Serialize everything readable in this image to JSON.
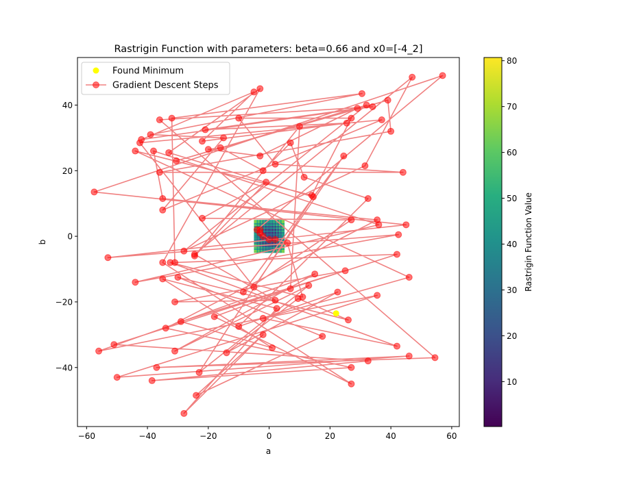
{
  "chart_data": {
    "type": "scatter",
    "title": "Rastrigin Function with parameters: beta=0.66 and x0=[-4_2]",
    "xlabel": "a",
    "ylabel": "b",
    "xlim": [
      -63,
      62.5
    ],
    "ylim": [
      -58,
      54.5
    ],
    "x_ticks": [
      -60,
      -40,
      -20,
      0,
      20,
      40,
      60
    ],
    "y_ticks": [
      -40,
      -20,
      0,
      20,
      40
    ],
    "legend_position": "upper-left",
    "colorbar": {
      "label": "Rastrigin Function Value",
      "colormap": "viridis",
      "range": [
        0.2,
        80.7
      ],
      "ticks": [
        10,
        20,
        30,
        40,
        50,
        60,
        70,
        80
      ]
    },
    "heatmap_region": {
      "x_range": [
        -5,
        5
      ],
      "y_range": [
        -5,
        5
      ]
    },
    "series": [
      {
        "name": "Found Minimum",
        "color": "#ffff00",
        "points": [
          [
            22,
            -23.5
          ]
        ]
      },
      {
        "name": "Gradient Descent Steps",
        "color": "#ff0000",
        "line_color": "#f08080",
        "points": [
          [
            -4,
            2
          ],
          [
            57,
            49
          ],
          [
            -57.5,
            13.5
          ],
          [
            45,
            3.5
          ],
          [
            -53,
            -6.5
          ],
          [
            42.5,
            0.5
          ],
          [
            -44,
            -14
          ],
          [
            36,
            3.5
          ],
          [
            -38,
            26
          ],
          [
            -35,
            11.5
          ],
          [
            35.5,
            5
          ],
          [
            -34,
            -28
          ],
          [
            27,
            -40
          ],
          [
            -38.5,
            -44
          ],
          [
            32.5,
            -38
          ],
          [
            -51,
            -33
          ],
          [
            42,
            -5.5
          ],
          [
            -31,
            -8
          ],
          [
            -32,
            36
          ],
          [
            30.5,
            43.5
          ],
          [
            -39,
            31
          ],
          [
            -15,
            30
          ],
          [
            -35,
            8
          ],
          [
            37,
            35.5
          ],
          [
            -42.5,
            28.5
          ],
          [
            -5,
            -15.5
          ],
          [
            24.5,
            24.5
          ],
          [
            -8.5,
            -17
          ],
          [
            27,
            5
          ],
          [
            -22,
            5.5
          ],
          [
            -1,
            16.5
          ],
          [
            -24.5,
            -6
          ],
          [
            10,
            33.5
          ],
          [
            7,
            -16
          ],
          [
            -18,
            -24.5
          ],
          [
            27,
            -45
          ],
          [
            -35,
            -8
          ],
          [
            -3,
            45
          ],
          [
            -33,
            25.5
          ],
          [
            14.5,
            12
          ],
          [
            -23,
            -41.5
          ],
          [
            13,
            -15
          ],
          [
            -31,
            -35
          ],
          [
            15,
            -11.5
          ],
          [
            -56,
            -35
          ],
          [
            35.5,
            -18
          ],
          [
            -50,
            -43
          ],
          [
            46,
            -36.5
          ],
          [
            -37,
            -40
          ],
          [
            54.5,
            -37
          ],
          [
            -36,
            35.5
          ],
          [
            34,
            39.5
          ],
          [
            -42,
            29.5
          ],
          [
            -5,
            44
          ],
          [
            -22,
            29
          ],
          [
            25.5,
            34.5
          ],
          [
            -21,
            32.5
          ],
          [
            29,
            39
          ],
          [
            -3,
            24.5
          ],
          [
            -20,
            26.5
          ],
          [
            -16,
            27
          ],
          [
            -2,
            20
          ],
          [
            7,
            28.5
          ],
          [
            11.5,
            18
          ],
          [
            32.5,
            11.5
          ],
          [
            -10,
            -27.5
          ],
          [
            22.5,
            -17
          ],
          [
            -14,
            -35.5
          ],
          [
            9.5,
            -19
          ],
          [
            26,
            -25.5
          ],
          [
            -30,
            -12.5
          ],
          [
            17.5,
            -30.5
          ],
          [
            -24,
            -48.5
          ],
          [
            -2,
            -30
          ],
          [
            -28,
            -54
          ],
          [
            2.5,
            -22
          ],
          [
            -35,
            -13
          ],
          [
            1,
            -34
          ],
          [
            -29,
            -26
          ],
          [
            25,
            -10.5
          ],
          [
            -31,
            -20
          ],
          [
            2,
            -19.5
          ],
          [
            -24.5,
            -5.5
          ],
          [
            47,
            48.5
          ],
          [
            31.5,
            21.5
          ],
          [
            -28,
            -4.5
          ],
          [
            32,
            40
          ],
          [
            -30.5,
            23
          ],
          [
            39,
            41.5
          ],
          [
            40,
            32
          ],
          [
            -36,
            19.5
          ],
          [
            44,
            19.5
          ],
          [
            2,
            22
          ],
          [
            -10,
            36
          ],
          [
            27,
            36
          ],
          [
            14,
            12.5
          ],
          [
            -44,
            26
          ],
          [
            46,
            -12.5
          ],
          [
            -2,
            -25
          ],
          [
            42,
            -33.5
          ],
          [
            -32.5,
            -8
          ],
          [
            11,
            -18.5
          ],
          [
            6,
            -2
          ],
          [
            2,
            -1
          ],
          [
            0,
            -1
          ],
          [
            -3,
            1
          ],
          [
            -2,
            0
          ],
          [
            -3,
            2
          ]
        ]
      }
    ]
  }
}
